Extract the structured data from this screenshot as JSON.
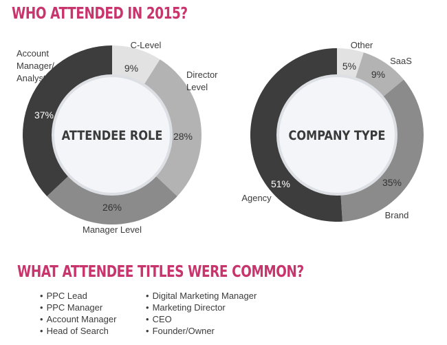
{
  "heading": "WHO ATTENDED IN 2015?",
  "subheading": "WHAT ATTENDEE TITLES WERE COMMON?",
  "colors": {
    "accent": "#c8356d",
    "dark": "#3d3d3d",
    "mid": "#8b8b8b",
    "light": "#b3b3b3",
    "lightest": "#e2e2e2",
    "center": "#f3f5f8"
  },
  "chart_data": [
    {
      "type": "pie",
      "title": "ATTENDEE ROLE",
      "slices": [
        {
          "label": "C-Level",
          "value": 9,
          "text": "9%"
        },
        {
          "label": "Director Level",
          "value": 28,
          "text": "28%"
        },
        {
          "label": "Manager Level",
          "value": 26,
          "text": "26%"
        },
        {
          "label": "Account Manager/ Analyst",
          "value": 37,
          "text": "37%"
        }
      ]
    },
    {
      "type": "pie",
      "title": "COMPANY TYPE",
      "slices": [
        {
          "label": "Other",
          "value": 5,
          "text": "5%"
        },
        {
          "label": "SaaS",
          "value": 9,
          "text": "9%"
        },
        {
          "label": "Brand",
          "value": 35,
          "text": "35%"
        },
        {
          "label": "Agency",
          "value": 51,
          "text": "51%"
        }
      ]
    }
  ],
  "titles": {
    "left": [
      "PPC Lead",
      "PPC Manager",
      "Account Manager",
      "Head of Search"
    ],
    "right": [
      "Digital Marketing Manager",
      "Marketing Director",
      "CEO",
      "Founder/Owner"
    ]
  }
}
